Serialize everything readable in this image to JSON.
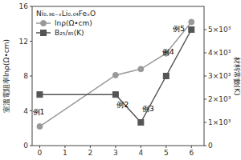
{
  "chart_data": {
    "type": "line",
    "x": [
      0,
      3,
      4,
      5,
      6
    ],
    "xlim": [
      -0.3,
      6.5
    ],
    "xticks": [
      0,
      1,
      2,
      3,
      4,
      5,
      6
    ],
    "ylim": [
      0,
      16
    ],
    "yticks": [
      0,
      4,
      8,
      12,
      16
    ],
    "y2lim": [
      0,
      6000
    ],
    "y2ticks": [
      0,
      {
        "value": 1000,
        "label": "1×10³"
      },
      {
        "value": 2000,
        "label": "2×10³"
      },
      {
        "value": 3000,
        "label": "3×10³"
      },
      {
        "value": 4000,
        "label": "4×10³"
      },
      {
        "value": 5000,
        "label": "5×10³"
      }
    ],
    "y_label": "室溫電阻率lnρ(Ω•cm)",
    "y2_label": "材料常數(K)",
    "legend": "upper left",
    "legend_title": "Ni₀.₉₆₋ₓLi₀.₀₄FeₓO",
    "grid": false,
    "series": [
      {
        "name": "lnρ(Ω•cm)",
        "color": "#999999",
        "marker": "circle",
        "values": [
          2.2,
          8.1,
          8.8,
          10.6,
          14.2
        ]
      },
      {
        "name": "B₂₅/₈₅(K)",
        "color": "#555555",
        "marker": "square",
        "axis": "y2",
        "values": [
          2200,
          2200,
          1000,
          3000,
          5000
        ]
      }
    ],
    "annotations": [
      {
        "text": "例1",
        "x": -0.05,
        "y": 3.4
      },
      {
        "text": "例4",
        "x": 5.08,
        "y": 10.3
      },
      {
        "text": "例5",
        "x": 5.5,
        "y": 13.0
      },
      {
        "text": "例2",
        "x": 3.05,
        "y": 1600,
        "axis": "y2"
      },
      {
        "text": "例3",
        "x": 4.05,
        "y": 1400,
        "axis": "y2"
      }
    ]
  }
}
